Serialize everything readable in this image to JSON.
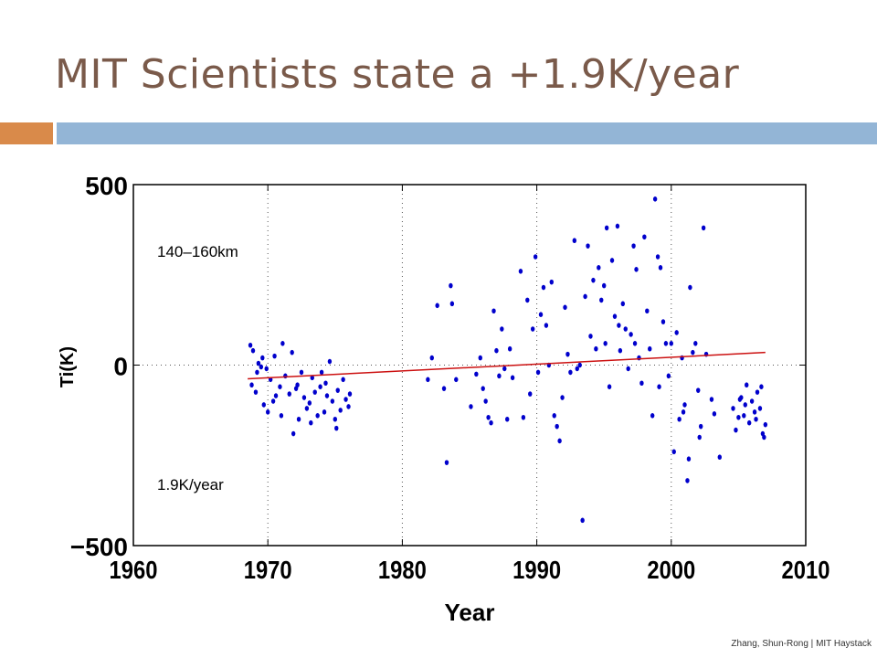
{
  "slide": {
    "title": "MIT Scientists state a +1.9K/year",
    "credit": "Zhang, Shun-Rong | MIT Haystack"
  },
  "colors": {
    "title": "#7a5a4a",
    "accent_orange": "#d98a4a",
    "accent_blue": "#93b5d6",
    "points": "#0000cc",
    "trend": "#cc1111"
  },
  "chart_data": {
    "type": "scatter",
    "title": "",
    "xlabel": "Year",
    "ylabel": "Ti(K)",
    "xlim": [
      1960,
      2010
    ],
    "ylim": [
      -500,
      500
    ],
    "xticks": [
      1960,
      1970,
      1980,
      1990,
      2000,
      2010
    ],
    "yticks": [
      -500,
      0,
      500
    ],
    "grid": "dotted vertical lines at decades, dotted horizontal line at 0",
    "annotations": [
      "140–160km",
      "1.9K/year"
    ],
    "trend_line": {
      "x": [
        1968.5,
        2007
      ],
      "y": [
        -38,
        35
      ]
    },
    "points": [
      [
        1968.7,
        55
      ],
      [
        1968.9,
        40
      ],
      [
        1968.8,
        -55
      ],
      [
        1969.1,
        -75
      ],
      [
        1969.3,
        5
      ],
      [
        1969.6,
        20
      ],
      [
        1969.9,
        -10
      ],
      [
        1970.2,
        -40
      ],
      [
        1970.5,
        25
      ],
      [
        1969.2,
        -20
      ],
      [
        1969.7,
        -110
      ],
      [
        1970.0,
        -130
      ],
      [
        1970.6,
        -85
      ],
      [
        1970.9,
        -60
      ],
      [
        1971.1,
        60
      ],
      [
        1971.3,
        -30
      ],
      [
        1971.6,
        -80
      ],
      [
        1971.8,
        35
      ],
      [
        1972.1,
        -65
      ],
      [
        1972.3,
        -150
      ],
      [
        1972.5,
        -20
      ],
      [
        1972.7,
        -90
      ],
      [
        1972.9,
        -120
      ],
      [
        1971.9,
        -190
      ],
      [
        1972.2,
        -55
      ],
      [
        1973.1,
        -105
      ],
      [
        1973.3,
        -35
      ],
      [
        1973.5,
        -75
      ],
      [
        1973.7,
        -140
      ],
      [
        1973.9,
        -60
      ],
      [
        1974.0,
        -20
      ],
      [
        1974.2,
        -130
      ],
      [
        1974.4,
        -85
      ],
      [
        1974.6,
        10
      ],
      [
        1974.8,
        -100
      ],
      [
        1975.0,
        -150
      ],
      [
        1975.2,
        -70
      ],
      [
        1975.4,
        -125
      ],
      [
        1975.6,
        -40
      ],
      [
        1975.8,
        -95
      ],
      [
        1976.0,
        -115
      ],
      [
        1975.1,
        -175
      ],
      [
        1974.3,
        -50
      ],
      [
        1973.2,
        -160
      ],
      [
        1970.4,
        -100
      ],
      [
        1971.0,
        -140
      ],
      [
        1969.5,
        -5
      ],
      [
        1976.1,
        -80
      ],
      [
        1981.9,
        -40
      ],
      [
        1982.2,
        20
      ],
      [
        1982.6,
        165
      ],
      [
        1983.1,
        -65
      ],
      [
        1983.3,
        -270
      ],
      [
        1983.6,
        220
      ],
      [
        1983.7,
        170
      ],
      [
        1984.0,
        -40
      ],
      [
        1985.1,
        -115
      ],
      [
        1985.5,
        -25
      ],
      [
        1985.8,
        20
      ],
      [
        1986.0,
        -65
      ],
      [
        1986.2,
        -100
      ],
      [
        1986.4,
        -145
      ],
      [
        1986.6,
        -160
      ],
      [
        1986.8,
        150
      ],
      [
        1987.0,
        40
      ],
      [
        1987.2,
        -30
      ],
      [
        1987.4,
        100
      ],
      [
        1987.6,
        -10
      ],
      [
        1987.8,
        -150
      ],
      [
        1988.0,
        45
      ],
      [
        1988.2,
        -35
      ],
      [
        1988.8,
        260
      ],
      [
        1989.0,
        -145
      ],
      [
        1989.3,
        180
      ],
      [
        1989.5,
        -80
      ],
      [
        1989.7,
        100
      ],
      [
        1989.9,
        300
      ],
      [
        1990.1,
        -20
      ],
      [
        1990.3,
        140
      ],
      [
        1990.5,
        215
      ],
      [
        1990.7,
        110
      ],
      [
        1990.9,
        0
      ],
      [
        1991.1,
        230
      ],
      [
        1991.3,
        -140
      ],
      [
        1991.5,
        -170
      ],
      [
        1991.7,
        -210
      ],
      [
        1991.9,
        -90
      ],
      [
        1992.1,
        160
      ],
      [
        1992.3,
        30
      ],
      [
        1992.5,
        -20
      ],
      [
        1992.8,
        345
      ],
      [
        1993.0,
        -10
      ],
      [
        1993.2,
        0
      ],
      [
        1993.4,
        -430
      ],
      [
        1993.6,
        190
      ],
      [
        1993.8,
        330
      ],
      [
        1994.0,
        80
      ],
      [
        1994.2,
        235
      ],
      [
        1994.4,
        45
      ],
      [
        1994.6,
        270
      ],
      [
        1994.8,
        180
      ],
      [
        1995.0,
        220
      ],
      [
        1995.2,
        380
      ],
      [
        1995.4,
        -60
      ],
      [
        1995.6,
        290
      ],
      [
        1995.8,
        135
      ],
      [
        1996.0,
        385
      ],
      [
        1996.2,
        40
      ],
      [
        1996.4,
        170
      ],
      [
        1996.6,
        100
      ],
      [
        1996.8,
        -10
      ],
      [
        1997.0,
        85
      ],
      [
        1997.2,
        330
      ],
      [
        1997.4,
        265
      ],
      [
        1997.6,
        20
      ],
      [
        1997.8,
        -50
      ],
      [
        1998.0,
        355
      ],
      [
        1998.2,
        150
      ],
      [
        1998.4,
        45
      ],
      [
        1998.6,
        -140
      ],
      [
        1998.8,
        460
      ],
      [
        1999.0,
        300
      ],
      [
        1999.2,
        270
      ],
      [
        1999.4,
        120
      ],
      [
        1999.6,
        60
      ],
      [
        1999.8,
        -30
      ],
      [
        2000.0,
        60
      ],
      [
        2000.2,
        -240
      ],
      [
        2000.4,
        90
      ],
      [
        2000.6,
        -150
      ],
      [
        2000.8,
        20
      ],
      [
        2001.0,
        -110
      ],
      [
        2001.2,
        -320
      ],
      [
        2001.4,
        215
      ],
      [
        2001.6,
        35
      ],
      [
        2001.8,
        60
      ],
      [
        2002.0,
        -70
      ],
      [
        2002.2,
        -170
      ],
      [
        2002.4,
        380
      ],
      [
        2002.6,
        30
      ],
      [
        2003.0,
        -95
      ],
      [
        2003.2,
        -135
      ],
      [
        2003.6,
        -255
      ],
      [
        1999.1,
        -60
      ],
      [
        2000.9,
        -130
      ],
      [
        2001.3,
        -260
      ],
      [
        2002.1,
        -200
      ],
      [
        1997.3,
        60
      ],
      [
        1996.1,
        110
      ],
      [
        1995.1,
        60
      ],
      [
        2004.6,
        -120
      ],
      [
        2004.8,
        -180
      ],
      [
        2005.0,
        -145
      ],
      [
        2005.2,
        -90
      ],
      [
        2005.4,
        -140
      ],
      [
        2005.6,
        -55
      ],
      [
        2005.8,
        -160
      ],
      [
        2006.0,
        -100
      ],
      [
        2006.2,
        -130
      ],
      [
        2006.4,
        -75
      ],
      [
        2006.6,
        -120
      ],
      [
        2006.8,
        -190
      ],
      [
        2007.0,
        -165
      ],
      [
        2006.9,
        -200
      ],
      [
        2005.5,
        -110
      ],
      [
        2006.3,
        -150
      ],
      [
        2005.1,
        -95
      ],
      [
        2006.7,
        -60
      ]
    ]
  }
}
